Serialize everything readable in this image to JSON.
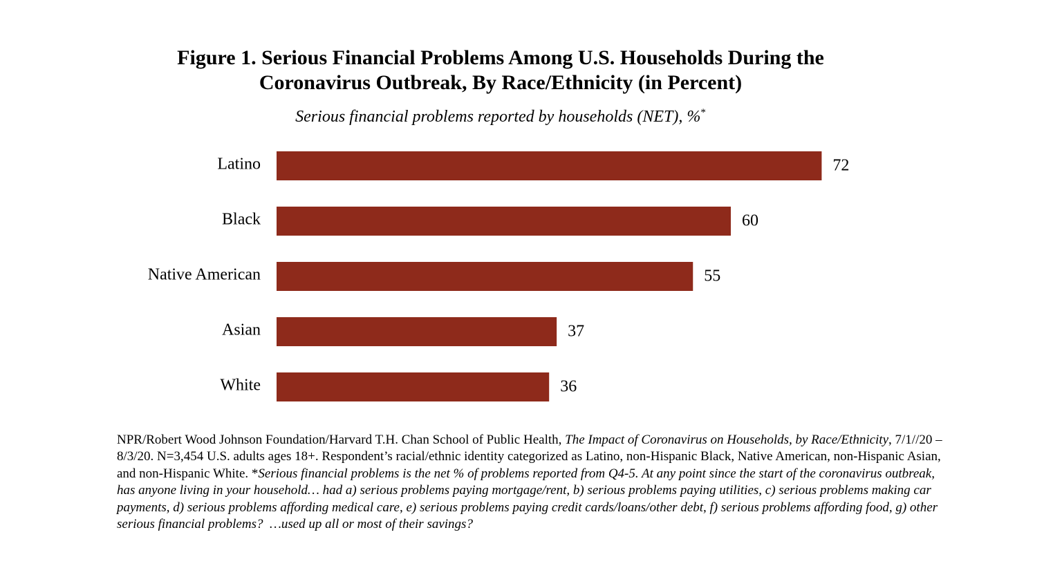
{
  "chart_data": {
    "type": "bar",
    "orientation": "horizontal",
    "title": "Figure 1. Serious Financial Problems Among U.S. Households During the Coronavirus Outbreak, By Race/Ethnicity (in Percent)",
    "subtitle": "Serious financial problems reported by households (NET), %",
    "subtitle_mark": "*",
    "categories": [
      "Latino",
      "Black",
      "Native American",
      "Asian",
      "White"
    ],
    "values": [
      72,
      60,
      55,
      37,
      36
    ],
    "color": "#8e2a1b",
    "xlim": [
      0,
      80
    ],
    "grid": false,
    "note": [
      {
        "text": "NPR/Robert Wood Johnson Foundation/Harvard T.H. Chan School of Public Health, ",
        "italic": false
      },
      {
        "text": "The Impact of Coronavirus on Households, by Race/Ethnicity",
        "italic": true
      },
      {
        "text": ", 7/1//20 – 8/3/20. N=3,454 U.S. adults ages 18+. Respondent’s racial/ethnic identity categorized as Latino, non-Hispanic Black, Native American, non-Hispanic Asian, and non-Hispanic White. *",
        "italic": false
      },
      {
        "text": "Serious financial problems is the net % of problems reported from Q4-5. At any point since the start of the coronavirus outbreak, has anyone living in your household… had a) serious problems paying mortgage/rent, b) serious problems paying utilities, c) serious problems making car payments, d) serious problems affording medical care, e) serious problems paying credit cards/loans/other debt, f) serious problems affording food, g) other serious financial problems?  …used up all or most of their savings?",
        "italic": true
      }
    ]
  }
}
